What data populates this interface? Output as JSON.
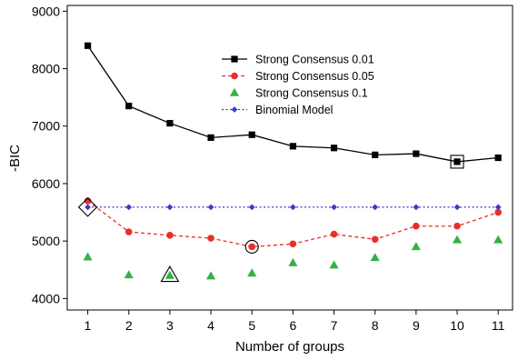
{
  "chart_data": {
    "type": "line",
    "title": "",
    "xlabel": "Number of groups",
    "ylabel": "-BIC",
    "x": [
      1,
      2,
      3,
      4,
      5,
      6,
      7,
      8,
      9,
      10,
      11
    ],
    "xlim": [
      0.5,
      11.35
    ],
    "ylim": [
      3800,
      9100
    ],
    "yticks": [
      4000,
      5000,
      6000,
      7000,
      8000,
      9000
    ],
    "grid": false,
    "legend_position": "top-center",
    "series": [
      {
        "name": "Strong Consensus 0.01",
        "color": "#000000",
        "marker": "square",
        "line": "solid",
        "values": [
          8400,
          7350,
          7050,
          6800,
          6850,
          6650,
          6620,
          6500,
          6520,
          6380,
          6450
        ],
        "highlight_x": 10
      },
      {
        "name": "Strong Consensus 0.05",
        "color": "#e8302a",
        "marker": "circle",
        "line": "dashed",
        "values": [
          5700,
          5160,
          5100,
          5050,
          4900,
          4950,
          5120,
          5030,
          5260,
          5260,
          5500
        ],
        "highlight_x": 5
      },
      {
        "name": "Strong Consensus 0.1",
        "color": "#33b245",
        "marker": "triangle",
        "line": "none",
        "values": [
          4720,
          4410,
          4400,
          4390,
          4440,
          4620,
          4580,
          4710,
          4900,
          5020,
          5020
        ],
        "highlight_x": 3
      },
      {
        "name": "Binomial Model",
        "color": "#3b3bc8",
        "marker": "diamond",
        "line": "dotted",
        "values": [
          5590,
          5590,
          5590,
          5590,
          5590,
          5590,
          5590,
          5590,
          5590,
          5590,
          5590
        ],
        "highlight_x": 1
      }
    ]
  }
}
